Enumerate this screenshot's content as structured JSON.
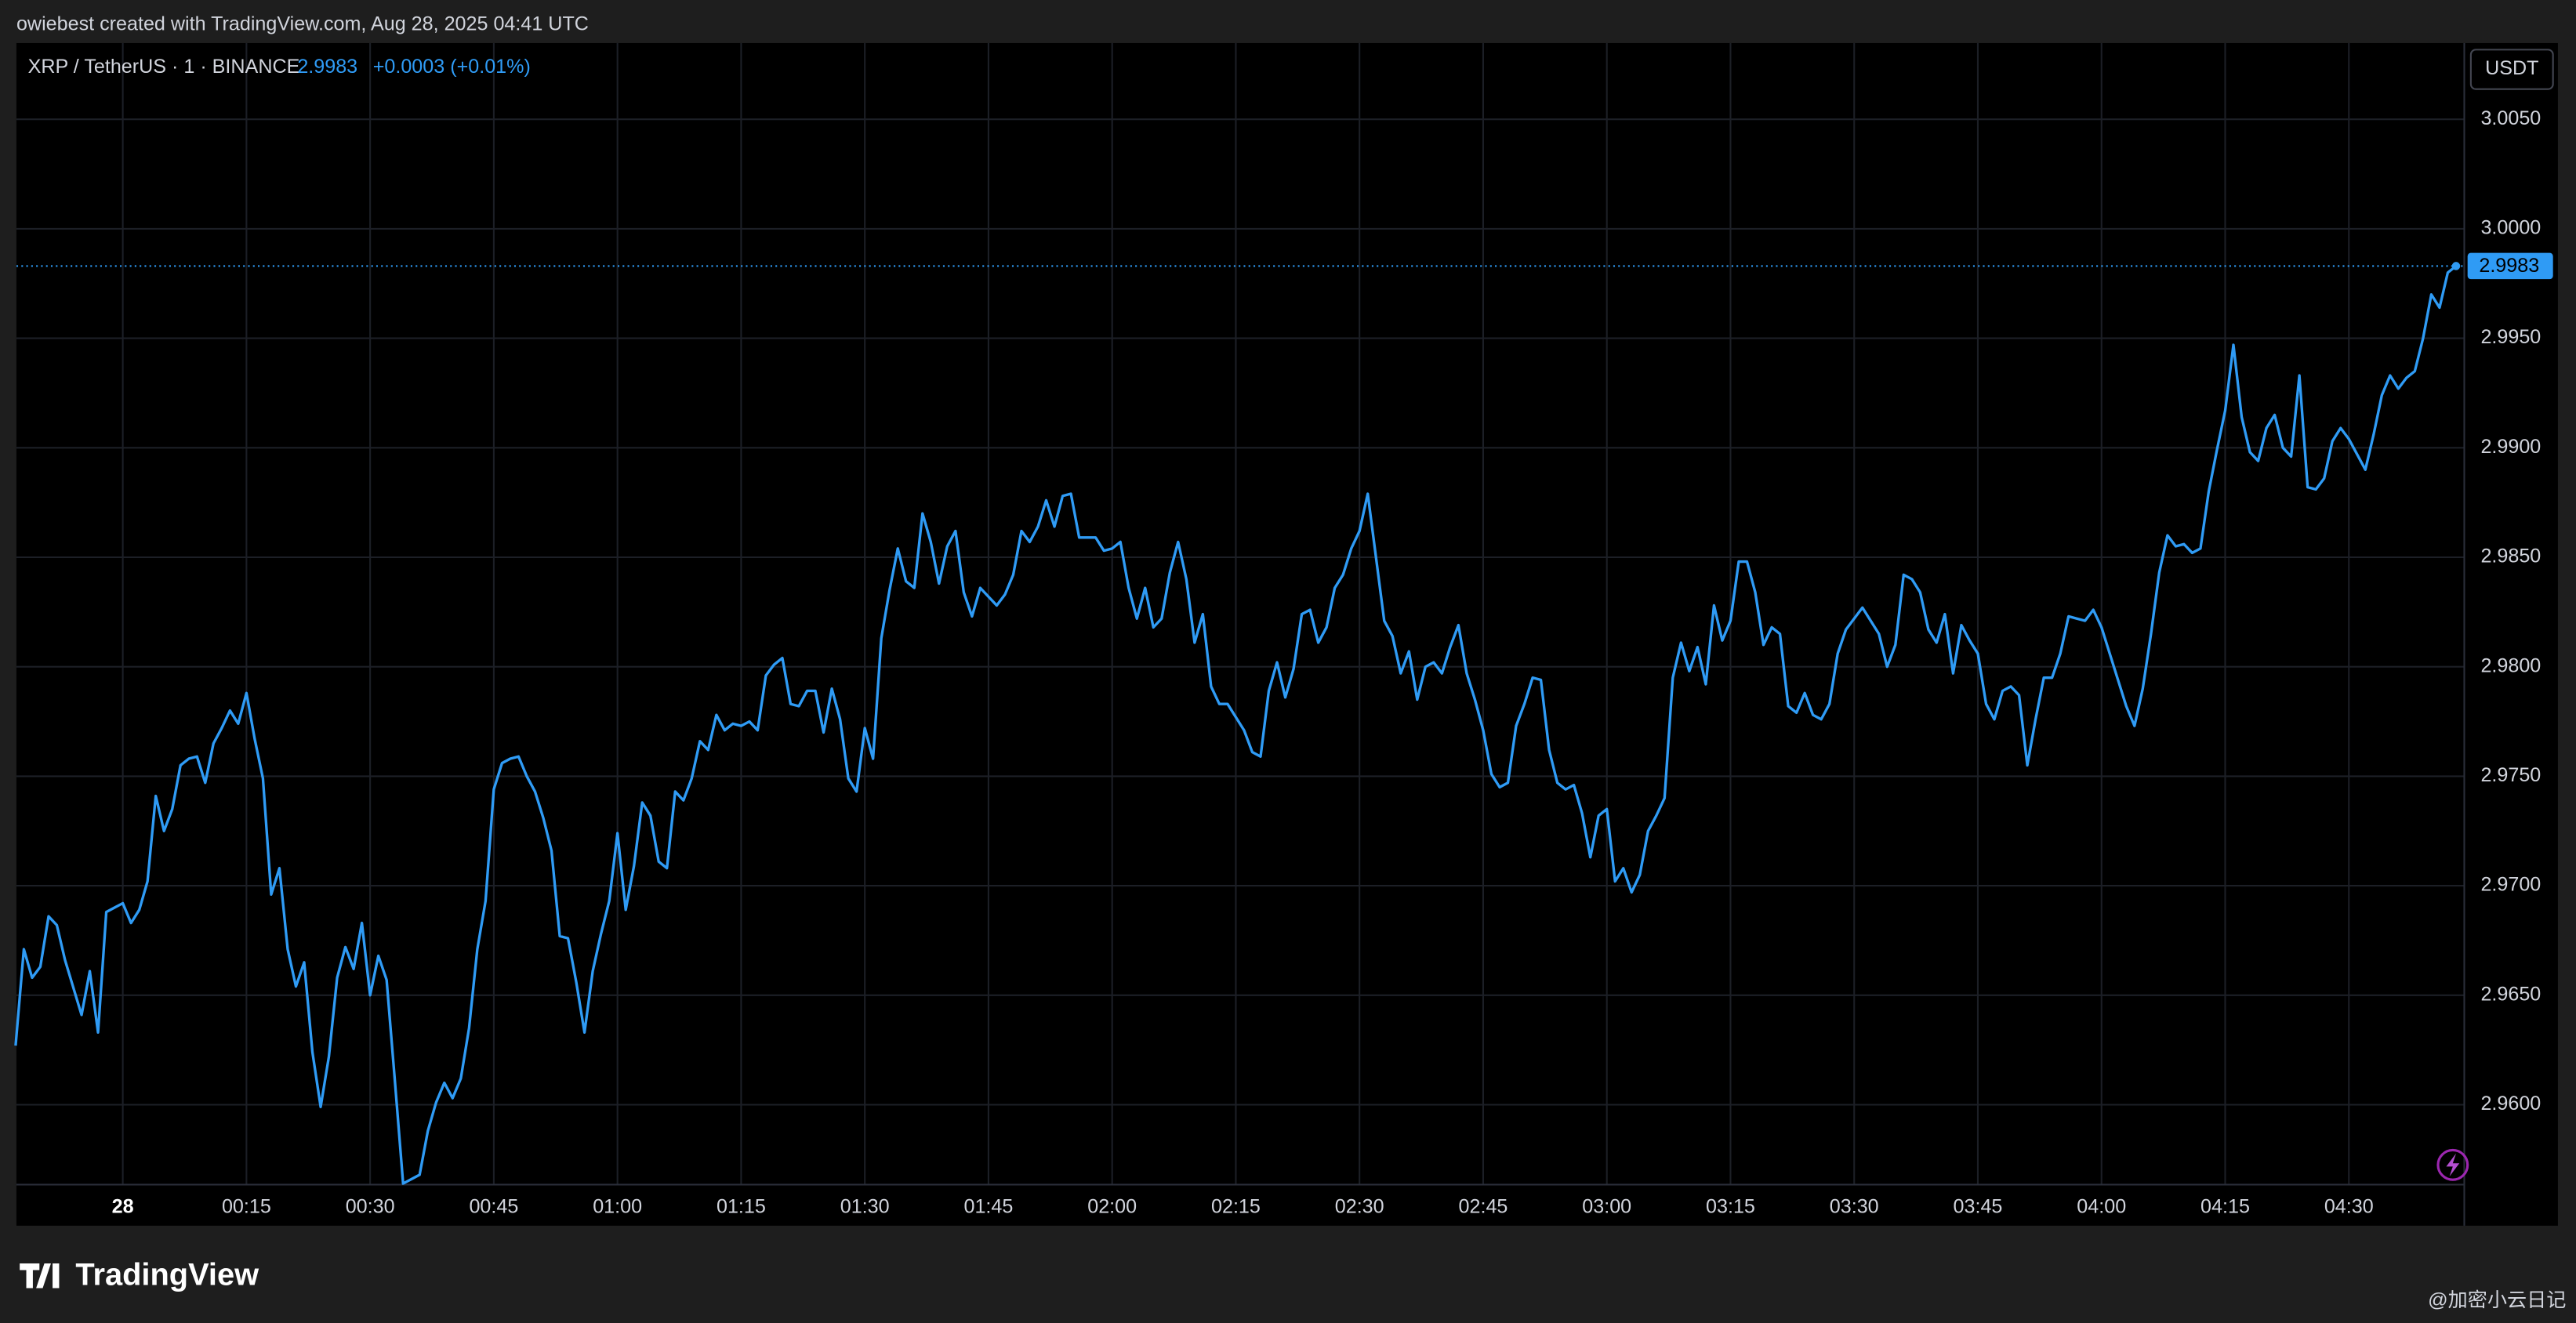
{
  "header": {
    "credit": "owiebest created with TradingView.com, Aug 28, 2025 04:41 UTC",
    "logo": "TradingView",
    "watermark": "@加密小云日记"
  },
  "chart_data": {
    "type": "line",
    "title": "XRP / TetherUS · 1 · BINANCE",
    "change": "+0.0003 (+0.01%)",
    "currency": "USDT",
    "x": [
      -13,
      -12,
      -11,
      -10,
      -9,
      -8,
      -7,
      -5,
      -4,
      -3,
      -2,
      -1,
      0,
      1,
      2,
      3,
      4,
      5,
      6,
      7,
      8,
      9,
      10,
      11,
      12,
      13,
      14,
      15,
      16,
      17,
      18,
      19,
      20,
      21,
      22,
      23,
      24,
      25,
      26,
      27,
      28,
      29,
      30,
      31,
      32,
      33,
      34,
      35,
      36,
      37,
      38,
      39,
      40,
      41,
      42,
      43,
      44,
      45,
      46,
      47,
      48,
      49,
      50,
      51,
      52,
      53,
      54,
      55,
      56,
      57,
      58,
      59,
      60,
      61,
      62,
      63,
      64,
      65,
      66,
      67,
      68,
      69,
      70,
      71,
      72,
      73,
      74,
      75,
      76,
      77,
      78,
      79,
      80,
      81,
      82,
      83,
      84,
      85,
      86,
      87,
      88,
      89,
      90,
      91,
      92,
      93,
      94,
      95,
      96,
      97,
      98,
      99,
      100,
      101,
      102,
      103,
      104,
      106,
      107,
      108,
      109,
      110,
      111,
      112,
      113,
      114,
      115,
      116,
      118,
      119,
      120,
      121,
      122,
      123,
      124,
      125,
      126,
      127,
      128,
      129,
      130,
      131,
      132,
      133,
      134,
      135,
      136,
      137,
      138,
      139,
      140,
      141,
      142,
      143,
      144,
      145,
      146,
      147,
      148,
      149,
      150,
      151,
      152,
      153,
      154,
      155,
      156,
      157,
      158,
      159,
      160,
      161,
      162,
      163,
      164,
      165,
      166,
      167,
      168,
      169,
      170,
      171,
      172,
      173,
      174,
      175,
      176,
      177,
      178,
      179,
      180,
      181,
      182,
      183,
      184,
      185,
      186,
      187,
      188,
      189,
      190,
      191,
      192,
      193,
      194,
      195,
      196,
      197,
      198,
      199,
      200,
      201,
      202,
      203,
      204,
      205,
      206,
      207,
      208,
      209,
      210,
      211,
      212,
      213,
      214,
      215,
      216,
      217,
      218,
      219,
      220,
      221,
      222,
      223,
      224,
      225,
      226,
      227,
      228,
      229,
      230,
      231,
      232,
      233,
      234,
      235,
      236,
      237,
      238,
      239,
      240,
      241,
      242,
      243,
      244,
      245,
      246,
      247,
      248,
      249,
      250,
      251,
      252,
      253,
      254,
      255,
      256,
      257,
      258,
      259,
      260,
      261,
      262,
      263,
      264,
      265,
      266,
      267,
      268,
      269,
      270,
      271,
      272,
      273,
      274,
      275,
      276,
      277,
      278,
      279,
      280,
      281,
      282,
      283
    ],
    "series": [
      {
        "color": "#2f9bf5",
        "values": [
          2.9627,
          2.9671,
          2.9658,
          2.9663,
          2.9686,
          2.9682,
          2.9666,
          2.9641,
          2.9661,
          2.9633,
          2.9688,
          2.969,
          2.9692,
          2.9683,
          2.9689,
          2.9702,
          2.9741,
          2.9725,
          2.9735,
          2.9755,
          2.9758,
          2.9759,
          2.9747,
          2.9765,
          2.9772,
          2.978,
          2.9774,
          2.9788,
          2.9767,
          2.9749,
          2.9696,
          2.9708,
          2.9671,
          2.9654,
          2.9665,
          2.9624,
          2.9599,
          2.9622,
          2.9658,
          2.9672,
          2.9662,
          2.9683,
          2.965,
          2.9668,
          2.9657,
          2.9611,
          2.9564,
          2.9566,
          2.9568,
          2.9588,
          2.9601,
          2.961,
          2.9603,
          2.9612,
          2.9635,
          2.9671,
          2.9693,
          2.9744,
          2.9756,
          2.9758,
          2.9759,
          2.975,
          2.9743,
          2.9731,
          2.9716,
          2.9677,
          2.9676,
          2.9656,
          2.9633,
          2.9661,
          2.9678,
          2.9693,
          2.9724,
          2.9689,
          2.9709,
          2.9738,
          2.9732,
          2.9711,
          2.9708,
          2.9743,
          2.9739,
          2.9749,
          2.9766,
          2.9762,
          2.9778,
          2.9771,
          2.9774,
          2.9773,
          2.9775,
          2.9771,
          2.9796,
          2.9801,
          2.9804,
          2.9783,
          2.9782,
          2.9789,
          2.9789,
          2.977,
          2.979,
          2.9776,
          2.9749,
          2.9743,
          2.9772,
          2.9758,
          2.9813,
          2.9835,
          2.9854,
          2.9839,
          2.9836,
          2.987,
          2.9857,
          2.9838,
          2.9855,
          2.9862,
          2.9834,
          2.9823,
          2.9836,
          2.9828,
          2.9833,
          2.9842,
          2.9862,
          2.9857,
          2.9864,
          2.9876,
          2.9864,
          2.9878,
          2.9879,
          2.9859,
          2.9859,
          2.9853,
          2.9854,
          2.9857,
          2.9836,
          2.9822,
          2.9836,
          2.9818,
          2.9822,
          2.9843,
          2.9857,
          2.984,
          2.9811,
          2.9824,
          2.9791,
          2.9783,
          2.9783,
          2.9777,
          2.9771,
          2.9761,
          2.9759,
          2.9789,
          2.9802,
          2.9786,
          2.9799,
          2.9824,
          2.9826,
          2.9811,
          2.9818,
          2.9836,
          2.9842,
          2.9854,
          2.9862,
          2.9879,
          2.985,
          2.9821,
          2.9814,
          2.9797,
          2.9807,
          2.9785,
          2.98,
          2.9802,
          2.9797,
          2.9809,
          2.9819,
          2.9797,
          2.9785,
          2.9771,
          2.9751,
          2.9745,
          2.9747,
          2.9773,
          2.9783,
          2.9795,
          2.9794,
          2.9762,
          2.9747,
          2.9744,
          2.9746,
          2.9733,
          2.9713,
          2.9732,
          2.9735,
          2.9702,
          2.9708,
          2.9697,
          2.9705,
          2.9725,
          2.9732,
          2.974,
          2.9795,
          2.9811,
          2.9798,
          2.9809,
          2.9792,
          2.9828,
          2.9812,
          2.9821,
          2.9848,
          2.9848,
          2.9834,
          2.981,
          2.9818,
          2.9815,
          2.9782,
          2.9779,
          2.9788,
          2.9778,
          2.9776,
          2.9783,
          2.9806,
          2.9817,
          2.9822,
          2.9827,
          2.9821,
          2.9815,
          2.98,
          2.981,
          2.9842,
          2.984,
          2.9834,
          2.9817,
          2.9811,
          2.9824,
          2.9797,
          2.9819,
          2.9812,
          2.9806,
          2.9783,
          2.9776,
          2.9789,
          2.9791,
          2.9787,
          2.9755,
          2.9776,
          2.9795,
          2.9795,
          2.9806,
          2.9823,
          2.9822,
          2.9821,
          2.9826,
          2.9818,
          2.9806,
          2.9794,
          2.9782,
          2.9773,
          2.979,
          2.9815,
          2.9843,
          2.986,
          2.9855,
          2.9856,
          2.9852,
          2.9854,
          2.988,
          2.9899,
          2.9917,
          2.9947,
          2.9914,
          2.9898,
          2.9894,
          2.9909,
          2.9915,
          2.99,
          2.9896,
          2.9933,
          2.9882,
          2.9881,
          2.9886,
          2.9903,
          2.9909,
          2.9904,
          2.9897,
          2.989,
          2.9906,
          2.9924,
          2.9933,
          2.9927,
          2.9932,
          2.9935,
          2.995,
          2.997,
          2.9964,
          2.998,
          2.9983
        ]
      }
    ],
    "xlim": [
      -12.9,
      284
    ],
    "xticks": [
      {
        "value": 0,
        "label": "28"
      },
      {
        "value": 15,
        "label": "00:15"
      },
      {
        "value": 30,
        "label": "00:30"
      },
      {
        "value": 45,
        "label": "00:45"
      },
      {
        "value": 60,
        "label": "01:00"
      },
      {
        "value": 75,
        "label": "01:15"
      },
      {
        "value": 90,
        "label": "01:30"
      },
      {
        "value": 105,
        "label": "01:45"
      },
      {
        "value": 120,
        "label": "02:00"
      },
      {
        "value": 135,
        "label": "02:15"
      },
      {
        "value": 150,
        "label": "02:30"
      },
      {
        "value": 165,
        "label": "02:45"
      },
      {
        "value": 180,
        "label": "03:00"
      },
      {
        "value": 195,
        "label": "03:15"
      },
      {
        "value": 210,
        "label": "03:30"
      },
      {
        "value": 225,
        "label": "03:45"
      },
      {
        "value": 240,
        "label": "04:00"
      },
      {
        "value": 255,
        "label": "04:15"
      },
      {
        "value": 270,
        "label": "04:30"
      }
    ],
    "ylim": [
      2.95635,
      3.00848
    ],
    "yticks": [
      {
        "value": 2.96,
        "label": "2.9600"
      },
      {
        "value": 2.965,
        "label": "2.9650"
      },
      {
        "value": 2.97,
        "label": "2.9700"
      },
      {
        "value": 2.975,
        "label": "2.9750"
      },
      {
        "value": 2.98,
        "label": "2.9800"
      },
      {
        "value": 2.985,
        "label": "2.9850"
      },
      {
        "value": 2.99,
        "label": "2.9900"
      },
      {
        "value": 2.995,
        "label": "2.9950"
      },
      {
        "value": 3.0,
        "label": "3.0000"
      },
      {
        "value": 3.005,
        "label": "3.0050"
      }
    ],
    "grid": true
  }
}
